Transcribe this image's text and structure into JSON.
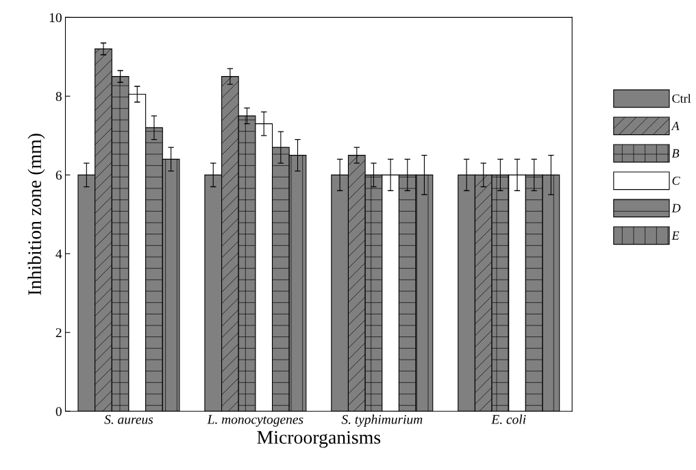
{
  "chart_data": {
    "type": "bar",
    "xlabel": "Microorganisms",
    "ylabel": "Inhibition zone (mm)",
    "categories": [
      "S. aureus",
      "L. monocytogenes",
      "S. typhimurium",
      "E. coli"
    ],
    "ylim": [
      0,
      10
    ],
    "yticks": [
      0,
      2,
      4,
      6,
      8,
      10
    ],
    "grid": false,
    "legend": "right",
    "series": [
      {
        "name": "Ctrl",
        "color": "#808080",
        "values": [
          6,
          6,
          6,
          6
        ],
        "errors": [
          0.3,
          0.3,
          0.4,
          0.4
        ]
      },
      {
        "name": "A",
        "color": "#808080",
        "values": [
          9.2,
          8.5,
          6.5,
          6
        ],
        "errors": [
          0.15,
          0.2,
          0.2,
          0.3
        ]
      },
      {
        "name": "B",
        "color": "#808080",
        "values": [
          8.5,
          7.5,
          6,
          6
        ],
        "errors": [
          0.15,
          0.2,
          0.3,
          0.4
        ]
      },
      {
        "name": "C",
        "color": "#ffffff",
        "values": [
          8.05,
          7.3,
          6,
          6
        ],
        "errors": [
          0.2,
          0.3,
          0.4,
          0.4
        ]
      },
      {
        "name": "D",
        "color": "#808080",
        "values": [
          7.2,
          6.7,
          6,
          6
        ],
        "errors": [
          0.3,
          0.4,
          0.4,
          0.4
        ]
      },
      {
        "name": "E",
        "color": "#808080",
        "values": [
          6.4,
          6.5,
          6,
          6
        ],
        "errors": [
          0.3,
          0.4,
          0.5,
          0.5
        ]
      }
    ]
  }
}
